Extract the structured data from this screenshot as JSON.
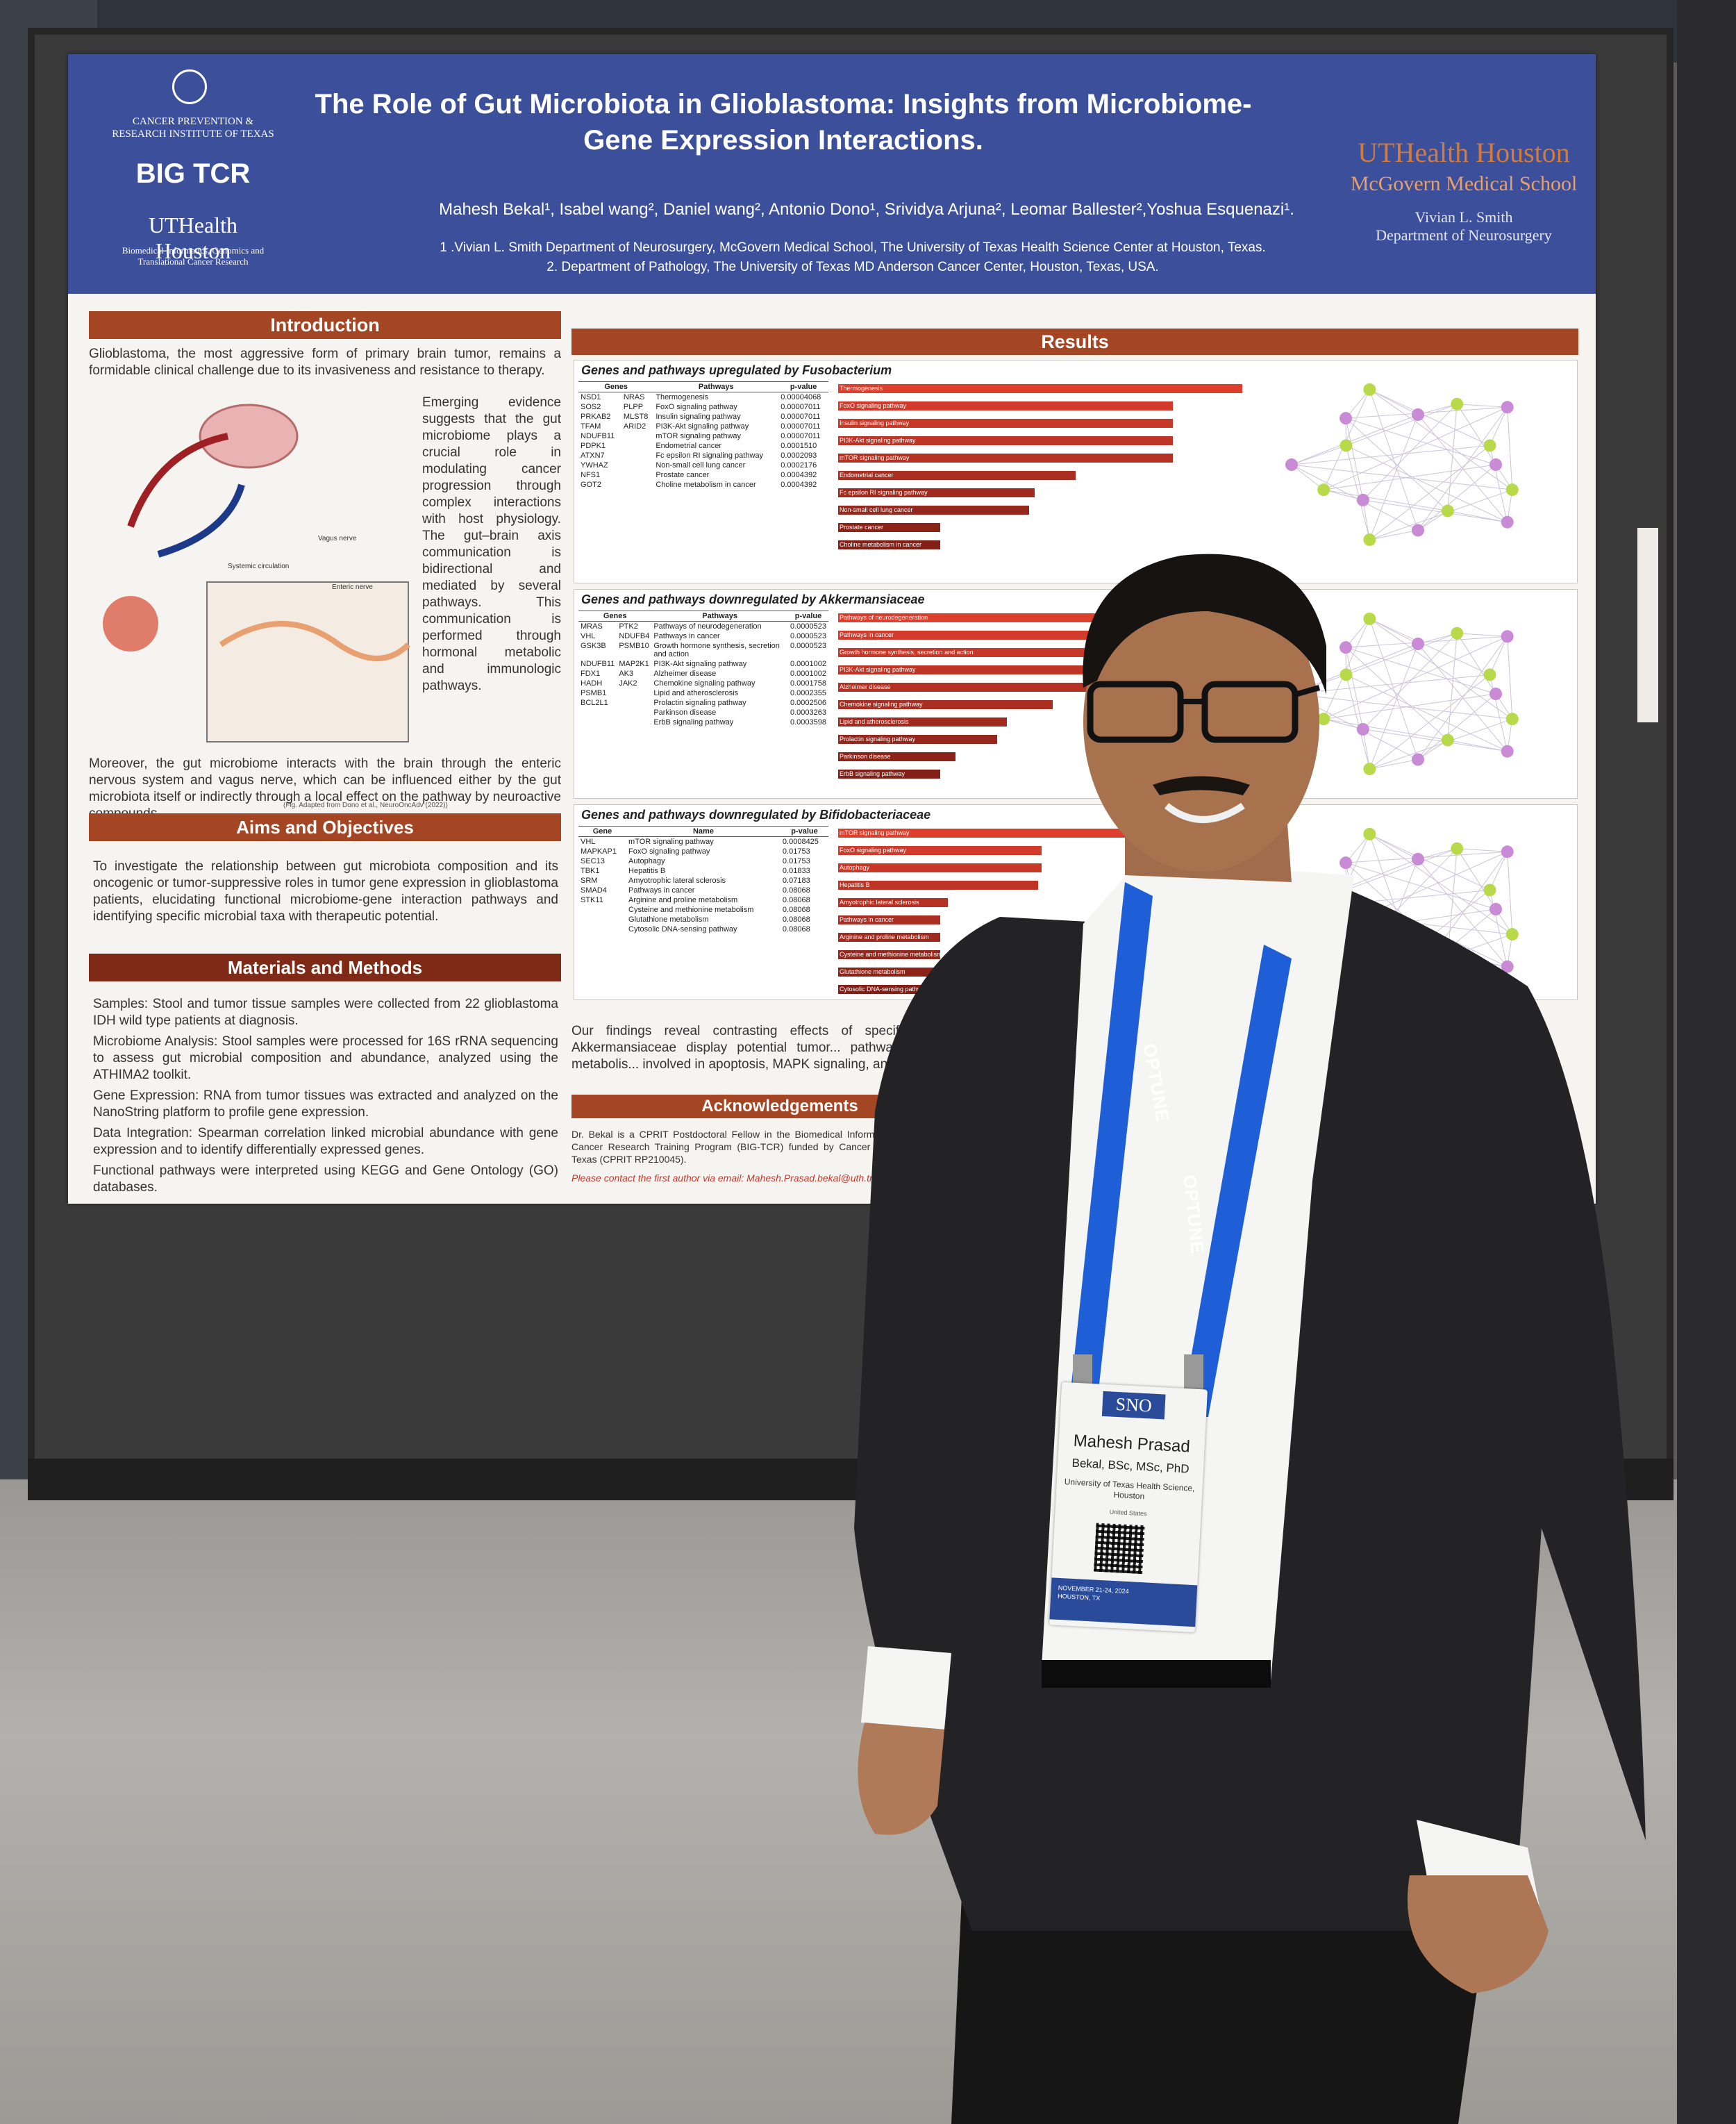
{
  "poster": {
    "institution_left": "CANCER PREVENTION & RESEARCH INSTITUTE OF TEXAS",
    "program_logo": "BIG TCR",
    "uthealth_left": "UTHealth Houston",
    "uthealth_left_sub": "Biomedical Informatics, Genomics and Translational Cancer Research",
    "title": "The Role of Gut Microbiota in Glioblastoma: Insights from Microbiome-Gene Expression Interactions.",
    "authors": "Mahesh Bekal¹, Isabel wang², Daniel wang², Antonio Dono¹, Srividya Arjuna², Leomar Ballester²,Yoshua Esquenazi¹.",
    "affiliation_1": "1 .Vivian L. Smith Department of Neurosurgery, McGovern Medical School, The University of Texas Health Science Center at Houston, Texas.",
    "affiliation_2": "2.     Department of Pathology, The University of Texas MD Anderson Cancer Center, Houston, Texas, USA.",
    "uthealth_right": "UTHealth Houston",
    "mcgovern": "McGovern Medical School",
    "dept_line1": "Vivian L. Smith",
    "dept_line2": "Department of Neurosurgery",
    "introduction": {
      "heading": "Introduction",
      "p1": "Glioblastoma, the most aggressive form of primary brain tumor, remains a formidable clinical challenge due to its invasiveness and resistance to therapy.",
      "p2": "Emerging evidence suggests that the gut microbiome plays a crucial role in modulating cancer progression through complex interactions with host physiology. The gut–brain axis communication is bidirectional and mediated by several pathways. This communication is performed through hormonal metabolic and immunologic pathways.",
      "p3": "Moreover, the gut microbiome interacts with the brain through the enteric nervous system and vagus nerve, which can be influenced either by the gut microbiota itself or indirectly through a local effect on the pathway by neuroactive compounds.",
      "caption": "(Fig. Adapted from Dono et al., NeuroOncAdv (2022))",
      "diagram_labels": [
        "Vagus nerve",
        "Systemic circulation",
        "Enteric nerve"
      ]
    },
    "aims": {
      "heading": "Aims and Objectives",
      "text": "To investigate the relationship between gut microbiota composition and its oncogenic or tumor-suppressive roles in tumor gene expression in glioblastoma patients, elucidating functional microbiome-gene interaction pathways and identifying specific microbial taxa with therapeutic potential."
    },
    "methods": {
      "heading": "Materials and Methods",
      "items": [
        "Samples: Stool and tumor tissue samples were collected from 22 glioblastoma IDH wild type patients at diagnosis.",
        "Microbiome Analysis: Stool samples were processed for 16S rRNA sequencing to assess gut microbial composition and abundance, analyzed using the ATHIMA2 toolkit.",
        "Gene Expression: RNA from tumor tissues was extracted and analyzed on the NanoString platform to profile gene expression.",
        "Data Integration: Spearman correlation linked microbial abundance with gene expression and to identify differentially expressed genes.",
        "Functional pathways were interpreted using KEGG and Gene Ontology (GO) databases."
      ]
    },
    "results": {
      "heading": "Results",
      "panel1": {
        "title": "Genes and pathways upregulated by Fusobacterium",
        "headers": [
          "Genes",
          "Pathways",
          "p-value"
        ],
        "rows": [
          [
            "NSD1",
            "NRAS",
            "Thermogenesis",
            "0.00004068"
          ],
          [
            "SOS2",
            "PLPP",
            "FoxO signaling pathway",
            "0.00007011"
          ],
          [
            "PRKAB2",
            "MLST8",
            "Insulin signaling pathway",
            "0.00007011"
          ],
          [
            "TFAM",
            "ARID2",
            "PI3K-Akt signaling pathway",
            "0.00007011"
          ],
          [
            "NDUFB11",
            "",
            "mTOR signaling pathway",
            "0.00007011"
          ],
          [
            "PDPK1",
            "",
            "Endometrial cancer",
            "0.0001510"
          ],
          [
            "ATXN7",
            "",
            "Fc epsilon RI signaling pathway",
            "0.0002093"
          ],
          [
            "YWHAZ",
            "",
            "Non-small cell lung cancer",
            "0.0002176"
          ],
          [
            "NFS1",
            "",
            "Prostate cancer",
            "0.0004392"
          ],
          [
            "GOT2",
            "",
            "Choline metabolism in cancer",
            "0.0004392"
          ]
        ]
      },
      "panel2": {
        "title": "Genes and pathways downregulated by Akkermansiaceae",
        "headers": [
          "Genes",
          "Pathways",
          "p-value"
        ],
        "rows": [
          [
            "MRAS",
            "PTK2",
            "Pathways of neurodegeneration",
            "0.0000523"
          ],
          [
            "VHL",
            "NDUFB4",
            "Pathways in cancer",
            "0.0000523"
          ],
          [
            "GSK3B",
            "PSMB10",
            "Growth hormone synthesis, secretion and action",
            "0.0000523"
          ],
          [
            "NDUFB11",
            "MAP2K1",
            "PI3K-Akt signaling pathway",
            "0.0001002"
          ],
          [
            "FDX1",
            "AK3",
            "Alzheimer disease",
            "0.0001002"
          ],
          [
            "HADH",
            "JAK2",
            "Chemokine signaling pathway",
            "0.0001758"
          ],
          [
            "PSMB1",
            "",
            "Lipid and atherosclerosis",
            "0.0002355"
          ],
          [
            "BCL2L1",
            "",
            "Prolactin signaling pathway",
            "0.0002506"
          ],
          [
            "",
            "",
            "Parkinson disease",
            "0.0003263"
          ],
          [
            "",
            "",
            "ErbB signaling pathway",
            "0.0003598"
          ]
        ]
      },
      "panel3": {
        "title": "Genes and pathways downregulated by Bifidobacteriaceae",
        "headers": [
          "Gene",
          "Name",
          "p-value"
        ],
        "rows": [
          [
            "VHL",
            "mTOR signaling pathway",
            "0.0008425"
          ],
          [
            "MAPKAP1",
            "FoxO signaling pathway",
            "0.01753"
          ],
          [
            "SEC13",
            "Autophagy",
            "0.01753"
          ],
          [
            "TBK1",
            "Hepatitis B",
            "0.01833"
          ],
          [
            "SRM",
            "Amyotrophic lateral sclerosis",
            "0.07183"
          ],
          [
            "SMAD4",
            "Pathways in cancer",
            "0.08068"
          ],
          [
            "STK11",
            "Arginine and proline metabolism",
            "0.08068"
          ],
          [
            "",
            "Cysteine and methionine metabolism",
            "0.08068"
          ],
          [
            "",
            "Glutathione metabolism",
            "0.08068"
          ],
          [
            "",
            "Cytosolic DNA-sensing pathway",
            "0.08068"
          ]
        ]
      },
      "findings": "Our findings reveal contrasting effects of specific gut microbiota t... Bifidobacteriaceae and Akkermansiaceae display potential tumor... pathways promoting cancer cell survival, growth, and metabolis... involved in apoptosis, MAPK signaling, and stress response pat..."
    },
    "acknowledgements": {
      "heading": "Acknowledgements",
      "text": "Dr. Bekal is a CPRIT Postdoctoral Fellow in the Biomedical Informatics, Gen... Translational Cancer Research Training Program (BIG-TCR) funded by Cancer P... Research Institute of Texas (CPRIT RP210045).",
      "contact": "Please contact the first author via email:  Mahesh.Prasad.bekal@uth.tmc.ed..."
    }
  },
  "badge": {
    "logo": "SNO",
    "name": "Mahesh Prasad",
    "credentials": "Bekal, BSc, MSc, PhD",
    "organization": "University of Texas Health Science, Houston",
    "country": "United States",
    "footer_date": "NOVEMBER 21-24, 2024",
    "footer_location": "HOUSTON, TX"
  },
  "lanyard": {
    "text": "OPTUNE"
  },
  "colors": {
    "header_blue": "#3c4f9b",
    "section_rust": "#a44523",
    "bar_red": "#c0392b",
    "node_green": "#b8d94a",
    "node_purple": "#c98ad6",
    "lanyard_blue": "#1e5fd8"
  }
}
